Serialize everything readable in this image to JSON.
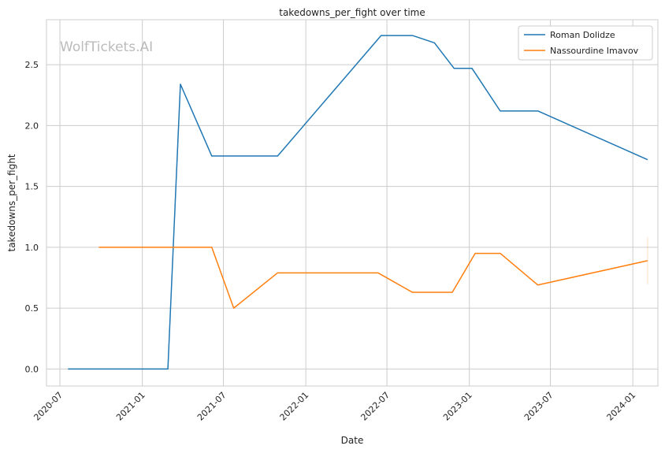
{
  "chart_data": {
    "type": "line",
    "title": "takedowns_per_fight over time",
    "xlabel": "Date",
    "ylabel": "takedowns_per_fight",
    "watermark": "WolfTickets.AI",
    "x_range": [
      "2020-06-01",
      "2024-02-26"
    ],
    "ylim": [
      -0.14,
      2.87
    ],
    "x_ticks": [
      "2020-07",
      "2021-01",
      "2021-07",
      "2022-01",
      "2022-07",
      "2023-01",
      "2023-07",
      "2024-01"
    ],
    "y_ticks": [
      "0.0",
      "0.5",
      "1.0",
      "1.5",
      "2.0",
      "2.5"
    ],
    "grid": true,
    "legend_position": "top-right",
    "series": [
      {
        "name": "Roman Dolidze",
        "color": "#1f77b4",
        "points": [
          {
            "x": "2020-07-19",
            "y": 0.0
          },
          {
            "x": "2021-02-27",
            "y": 0.0
          },
          {
            "x": "2021-03-27",
            "y": 2.34
          },
          {
            "x": "2021-06-05",
            "y": 1.75
          },
          {
            "x": "2021-10-30",
            "y": 1.75
          },
          {
            "x": "2022-06-18",
            "y": 2.74
          },
          {
            "x": "2022-08-27",
            "y": 2.74
          },
          {
            "x": "2022-10-15",
            "y": 2.68
          },
          {
            "x": "2022-11-28",
            "y": 2.47
          },
          {
            "x": "2023-01-07",
            "y": 2.47
          },
          {
            "x": "2023-03-11",
            "y": 2.12
          },
          {
            "x": "2023-06-03",
            "y": 2.12
          },
          {
            "x": "2024-02-03",
            "y": 1.72
          }
        ]
      },
      {
        "name": "Nassourdine Imavov",
        "color": "#ff7f0e",
        "points": [
          {
            "x": "2020-09-26",
            "y": 1.0
          },
          {
            "x": "2021-06-05",
            "y": 1.0
          },
          {
            "x": "2021-07-24",
            "y": 0.5
          },
          {
            "x": "2021-10-30",
            "y": 0.79
          },
          {
            "x": "2022-06-11",
            "y": 0.79
          },
          {
            "x": "2022-08-27",
            "y": 0.63
          },
          {
            "x": "2022-11-24",
            "y": 0.63
          },
          {
            "x": "2023-01-14",
            "y": 0.95
          },
          {
            "x": "2023-03-11",
            "y": 0.95
          },
          {
            "x": "2023-06-03",
            "y": 0.69
          },
          {
            "x": "2024-02-03",
            "y": 0.89
          }
        ]
      }
    ]
  }
}
